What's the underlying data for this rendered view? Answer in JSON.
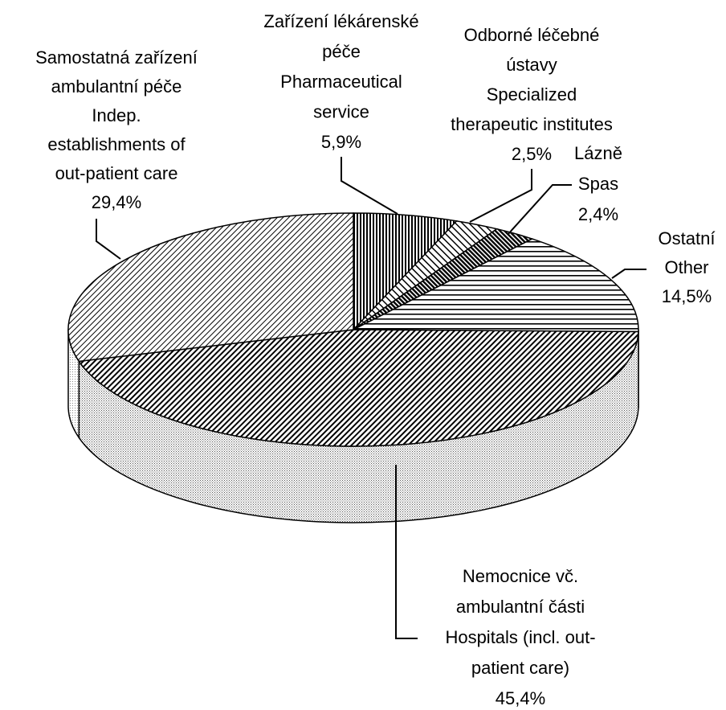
{
  "chart_data": {
    "type": "pie",
    "categories": [
      [
        "Zařízení lékárenské",
        "péče",
        "Pharmaceutical",
        "service"
      ],
      [
        "Odborné léčebné",
        "ústavy",
        "Specialized",
        "therapeutic institutes"
      ],
      [
        "Lázně",
        "Spas"
      ],
      [
        "Ostatní",
        "Other"
      ],
      [
        "Nemocnice vč.",
        "ambulantní části",
        "Hospitals (incl. out-",
        "patient care)"
      ],
      [
        "Samostatná zařízení",
        "ambulantní péče",
        "Indep.",
        "establishments of",
        "out-patient care"
      ]
    ],
    "values": [
      5.9,
      2.5,
      2.4,
      14.5,
      45.4,
      29.4
    ],
    "value_labels": [
      "5,9%",
      "2,5%",
      "2,4%",
      "14,5%",
      "45,4%",
      "29,4%"
    ]
  }
}
